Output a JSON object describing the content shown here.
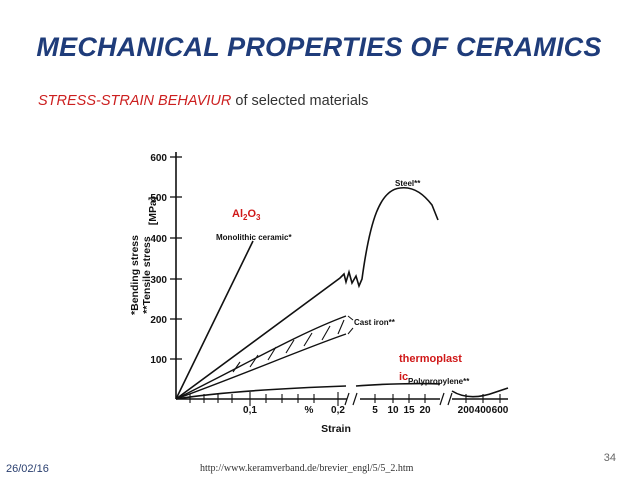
{
  "slide": {
    "title": "MECHANICAL PROPERTIES OF CERAMICS",
    "subtitle_emph": "STRESS-STRAIN BEHAVIUR",
    "subtitle_rest": " of selected materials",
    "date": "26/02/16",
    "url": "http://www.keramverband.de/brevier_engl/5/5_2.htm",
    "page_number": "34",
    "accent_color": "#1f3c7a",
    "emph_color": "#cc1f1f"
  },
  "chart_data": {
    "type": "line",
    "xlabel": "Strain",
    "ylabel_line1": "*Bending stress",
    "ylabel_line2": "**Tensile stress",
    "yunit": "[MPa]",
    "y_ticks": [
      "100",
      "200",
      "300",
      "400",
      "500",
      "600"
    ],
    "x_tick_labels": [
      "0,1",
      "%",
      "0,2",
      "5",
      "10",
      "15",
      "20",
      "200",
      "400",
      "600"
    ],
    "ylim": [
      0,
      600
    ],
    "series": [
      {
        "name": "Monolithic ceramic*",
        "x": [
          0,
          0.12
        ],
        "y": [
          0,
          400
        ]
      },
      {
        "name": "Steel**",
        "x": [
          0,
          0.2,
          3,
          10,
          15,
          20,
          24
        ],
        "y": [
          0,
          310,
          300,
          490,
          520,
          500,
          440
        ]
      },
      {
        "name": "Cast iron**",
        "x": [
          0,
          0.21
        ],
        "y": [
          0,
          225
        ]
      },
      {
        "name": "Polypropylene**",
        "x": [
          0,
          0.2,
          3,
          20,
          200,
          400,
          600
        ],
        "y": [
          0,
          30,
          32,
          30,
          25,
          15,
          30
        ]
      }
    ],
    "annotations": [
      "Al",
      "2",
      "O",
      "3",
      "thermoplast",
      "ic"
    ]
  }
}
